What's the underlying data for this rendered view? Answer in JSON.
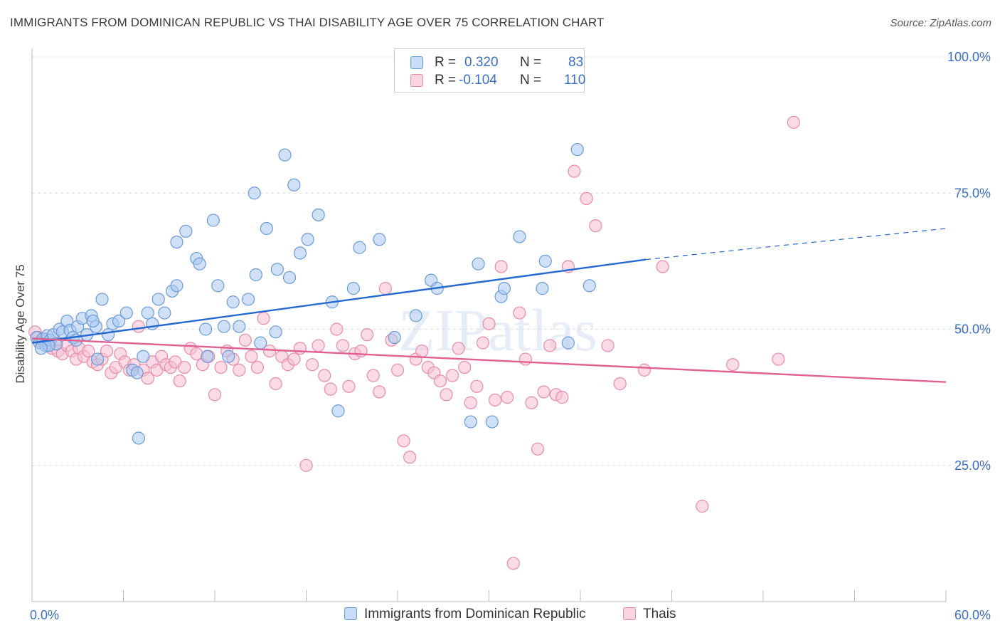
{
  "title": "IMMIGRANTS FROM DOMINICAN REPUBLIC VS THAI DISABILITY AGE OVER 75 CORRELATION CHART",
  "source": "Source: ZipAtlas.com",
  "watermark": "ZIPatlas",
  "legend": {
    "r_label": "R =",
    "n_label": "N =",
    "rows": [
      {
        "r": "0.320",
        "n": "83",
        "color": "#a9c8f0",
        "border": "#6a9ad8"
      },
      {
        "r": "-0.104",
        "n": "110",
        "color": "#f7bfd2",
        "border": "#e88aaa"
      }
    ]
  },
  "chart_data": {
    "type": "scatter",
    "xlabel": "",
    "ylabel": "Disability Age Over 75",
    "xlim": [
      0,
      60
    ],
    "ylim": [
      0,
      100
    ],
    "x_tick_labels": [
      "0.0%",
      "60.0%"
    ],
    "y_tick_labels": [
      "100.0%",
      "75.0%",
      "50.0%",
      "25.0%"
    ],
    "y_ticks": [
      100,
      75,
      50,
      25
    ],
    "grid": true,
    "legend_position": "bottom",
    "series": [
      {
        "name": "Immigrants from Dominican Republic",
        "color": "#6a9ad8",
        "fill": "#a9c8f0",
        "trend_color": "#2468d0",
        "trend": {
          "x0": 0,
          "y0": 47.5,
          "x1": 40.3,
          "y1": 62.8,
          "dashed_to_x": 60,
          "dashed_to_y": 68.5
        },
        "points": [
          [
            0.3,
            48.5
          ],
          [
            0.5,
            47.5
          ],
          [
            0.7,
            48.2
          ],
          [
            0.9,
            47.0
          ],
          [
            1.0,
            48.8
          ],
          [
            1.2,
            48.0
          ],
          [
            1.4,
            49.0
          ],
          [
            1.6,
            47.3
          ],
          [
            1.8,
            50.0
          ],
          [
            2.0,
            49.5
          ],
          [
            2.3,
            51.5
          ],
          [
            2.5,
            49.8
          ],
          [
            2.7,
            48.5
          ],
          [
            3.0,
            50.5
          ],
          [
            3.3,
            52.0
          ],
          [
            3.6,
            49.0
          ],
          [
            3.9,
            52.5
          ],
          [
            4.2,
            50.5
          ],
          [
            4.6,
            55.5
          ],
          [
            5.0,
            49.0
          ],
          [
            5.3,
            51.0
          ],
          [
            5.7,
            51.5
          ],
          [
            6.2,
            53.0
          ],
          [
            6.6,
            42.5
          ],
          [
            7.0,
            30.0
          ],
          [
            7.3,
            45.0
          ],
          [
            7.6,
            53.0
          ],
          [
            7.9,
            51.0
          ],
          [
            8.3,
            55.5
          ],
          [
            8.7,
            53.0
          ],
          [
            9.2,
            57.0
          ],
          [
            9.5,
            58.0
          ],
          [
            10.1,
            68.0
          ],
          [
            10.8,
            63.0
          ],
          [
            11.0,
            62.0
          ],
          [
            11.5,
            45.0
          ],
          [
            11.9,
            70.0
          ],
          [
            12.2,
            58.0
          ],
          [
            12.6,
            50.5
          ],
          [
            12.9,
            45.0
          ],
          [
            13.2,
            55.0
          ],
          [
            13.6,
            50.5
          ],
          [
            14.2,
            55.5
          ],
          [
            14.6,
            75.0
          ],
          [
            14.7,
            60.0
          ],
          [
            15.0,
            47.5
          ],
          [
            15.4,
            68.5
          ],
          [
            16.1,
            61.0
          ],
          [
            16.6,
            82.0
          ],
          [
            16.9,
            59.5
          ],
          [
            17.2,
            76.5
          ],
          [
            17.6,
            64.0
          ],
          [
            18.1,
            66.5
          ],
          [
            18.8,
            71.0
          ],
          [
            19.7,
            55.0
          ],
          [
            20.1,
            35.0
          ],
          [
            21.1,
            57.5
          ],
          [
            22.8,
            66.5
          ],
          [
            23.8,
            48.5
          ],
          [
            25.2,
            52.5
          ],
          [
            26.2,
            59.0
          ],
          [
            26.6,
            57.5
          ],
          [
            28.8,
            33.0
          ],
          [
            29.3,
            62.0
          ],
          [
            30.2,
            33.0
          ],
          [
            30.8,
            56.0
          ],
          [
            31.0,
            57.5
          ],
          [
            32.0,
            67.0
          ],
          [
            33.5,
            57.5
          ],
          [
            33.7,
            62.5
          ],
          [
            35.2,
            47.5
          ],
          [
            35.8,
            83.0
          ],
          [
            36.6,
            58.0
          ],
          [
            21.5,
            65.0
          ],
          [
            9.5,
            66.0
          ],
          [
            4.3,
            44.5
          ],
          [
            2.9,
            48.0
          ],
          [
            1.1,
            47.0
          ],
          [
            0.6,
            46.5
          ],
          [
            6.9,
            42.0
          ],
          [
            16.0,
            49.5
          ],
          [
            11.4,
            50.0
          ],
          [
            4.0,
            51.5
          ]
        ]
      },
      {
        "name": "Thais",
        "color": "#e88aaa",
        "fill": "#f7bfd2",
        "trend_color": "#e06090",
        "trend": {
          "x0": 0,
          "y0": 48.3,
          "x1": 60,
          "y1": 40.3
        },
        "points": [
          [
            0.2,
            49.5
          ],
          [
            0.4,
            48.5
          ],
          [
            0.6,
            47.8
          ],
          [
            0.9,
            48.2
          ],
          [
            1.1,
            47.0
          ],
          [
            1.3,
            46.5
          ],
          [
            1.5,
            47.5
          ],
          [
            1.7,
            46.0
          ],
          [
            2.0,
            45.5
          ],
          [
            2.3,
            47.0
          ],
          [
            2.6,
            46.0
          ],
          [
            2.9,
            44.5
          ],
          [
            3.1,
            46.5
          ],
          [
            3.4,
            45.0
          ],
          [
            3.7,
            46.0
          ],
          [
            4.0,
            44.0
          ],
          [
            4.3,
            43.5
          ],
          [
            4.6,
            44.5
          ],
          [
            4.9,
            46.0
          ],
          [
            5.2,
            42.0
          ],
          [
            5.5,
            43.0
          ],
          [
            5.8,
            45.5
          ],
          [
            6.1,
            44.0
          ],
          [
            6.4,
            42.5
          ],
          [
            6.7,
            43.5
          ],
          [
            7.0,
            50.5
          ],
          [
            7.3,
            42.5
          ],
          [
            7.6,
            41.0
          ],
          [
            7.9,
            44.0
          ],
          [
            8.2,
            42.5
          ],
          [
            8.5,
            45.0
          ],
          [
            8.8,
            43.5
          ],
          [
            9.1,
            43.0
          ],
          [
            9.4,
            44.0
          ],
          [
            9.7,
            40.5
          ],
          [
            10.0,
            43.0
          ],
          [
            10.4,
            46.5
          ],
          [
            10.8,
            45.5
          ],
          [
            11.2,
            43.5
          ],
          [
            11.6,
            45.0
          ],
          [
            12.0,
            38.0
          ],
          [
            12.4,
            43.0
          ],
          [
            12.8,
            46.0
          ],
          [
            13.2,
            44.5
          ],
          [
            13.6,
            42.5
          ],
          [
            14.0,
            48.0
          ],
          [
            14.4,
            45.0
          ],
          [
            14.8,
            43.0
          ],
          [
            15.2,
            52.0
          ],
          [
            15.6,
            46.0
          ],
          [
            16.0,
            40.0
          ],
          [
            16.4,
            45.0
          ],
          [
            16.8,
            43.5
          ],
          [
            17.2,
            44.5
          ],
          [
            17.6,
            46.5
          ],
          [
            18.0,
            25.0
          ],
          [
            18.4,
            43.5
          ],
          [
            18.8,
            47.0
          ],
          [
            19.2,
            41.5
          ],
          [
            19.6,
            39.0
          ],
          [
            20.0,
            50.0
          ],
          [
            20.4,
            47.0
          ],
          [
            20.8,
            39.5
          ],
          [
            21.2,
            45.5
          ],
          [
            21.6,
            46.0
          ],
          [
            22.0,
            49.0
          ],
          [
            22.4,
            41.5
          ],
          [
            22.8,
            38.5
          ],
          [
            23.2,
            57.5
          ],
          [
            23.6,
            48.0
          ],
          [
            24.0,
            42.5
          ],
          [
            24.4,
            29.5
          ],
          [
            24.8,
            26.5
          ],
          [
            25.2,
            44.5
          ],
          [
            25.6,
            46.0
          ],
          [
            26.0,
            43.0
          ],
          [
            26.4,
            42.0
          ],
          [
            26.8,
            40.5
          ],
          [
            27.2,
            38.0
          ],
          [
            27.6,
            41.5
          ],
          [
            28.0,
            46.5
          ],
          [
            28.4,
            43.0
          ],
          [
            28.8,
            36.5
          ],
          [
            29.2,
            39.5
          ],
          [
            29.6,
            47.5
          ],
          [
            30.0,
            51.0
          ],
          [
            30.4,
            37.0
          ],
          [
            30.8,
            61.5
          ],
          [
            31.2,
            37.5
          ],
          [
            31.6,
            7.0
          ],
          [
            32.0,
            53.0
          ],
          [
            32.4,
            44.5
          ],
          [
            32.8,
            36.5
          ],
          [
            33.2,
            28.0
          ],
          [
            33.6,
            38.5
          ],
          [
            34.0,
            47.0
          ],
          [
            34.4,
            38.0
          ],
          [
            34.8,
            37.5
          ],
          [
            35.2,
            61.5
          ],
          [
            35.6,
            79.0
          ],
          [
            36.4,
            74.0
          ],
          [
            37.0,
            69.0
          ],
          [
            37.8,
            47.0
          ],
          [
            38.6,
            40.0
          ],
          [
            40.2,
            42.5
          ],
          [
            41.4,
            61.5
          ],
          [
            44.0,
            17.5
          ],
          [
            46.0,
            43.5
          ],
          [
            49.0,
            44.5
          ],
          [
            50.0,
            88.0
          ]
        ]
      }
    ]
  }
}
